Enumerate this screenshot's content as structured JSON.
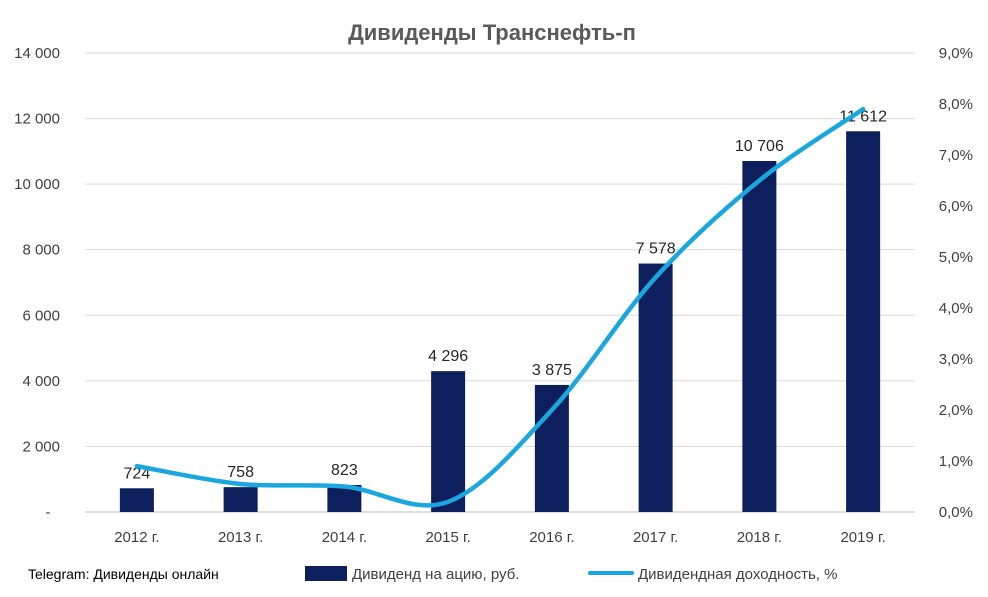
{
  "chart_data": {
    "type": "bar",
    "title": "Дивиденды Транснефть-п",
    "categories": [
      "2012 г.",
      "2013 г.",
      "2014 г.",
      "2015 г.",
      "2016 г.",
      "2017 г.",
      "2018 г.",
      "2019 г."
    ],
    "series": [
      {
        "name": "Дивиденд на ацию, руб.",
        "type": "bar",
        "axis": "left",
        "color": "#0d1f5c",
        "values": [
          724,
          758,
          823,
          4296,
          3875,
          7578,
          10706,
          11612
        ],
        "labels": [
          "724",
          "758",
          "823",
          "4 296",
          "3 875",
          "7 578",
          "10 706",
          "11 612"
        ]
      },
      {
        "name": "Дивидендная доходность, %",
        "type": "line",
        "axis": "right",
        "color": "#1aa7e0",
        "values": [
          0.9,
          0.55,
          0.5,
          0.2,
          2.0,
          4.6,
          6.5,
          7.9
        ]
      }
    ],
    "y_left": {
      "ylim": [
        0,
        14000
      ],
      "ticks": [
        0,
        2000,
        4000,
        6000,
        8000,
        10000,
        12000,
        14000
      ],
      "tick_labels": [
        "-",
        "2 000",
        "4 000",
        "6 000",
        "8 000",
        "10 000",
        "12 000",
        "14 000"
      ]
    },
    "y_right": {
      "ylim": [
        0,
        9
      ],
      "ticks": [
        0,
        1,
        2,
        3,
        4,
        5,
        6,
        7,
        8,
        9
      ],
      "tick_labels": [
        "0,0%",
        "1,0%",
        "2,0%",
        "3,0%",
        "4,0%",
        "5,0%",
        "6,0%",
        "7,0%",
        "8,0%",
        "9,0%"
      ]
    },
    "grid": true,
    "legend": "bottom"
  },
  "credit": "Telegram: Дивиденды онлайн"
}
